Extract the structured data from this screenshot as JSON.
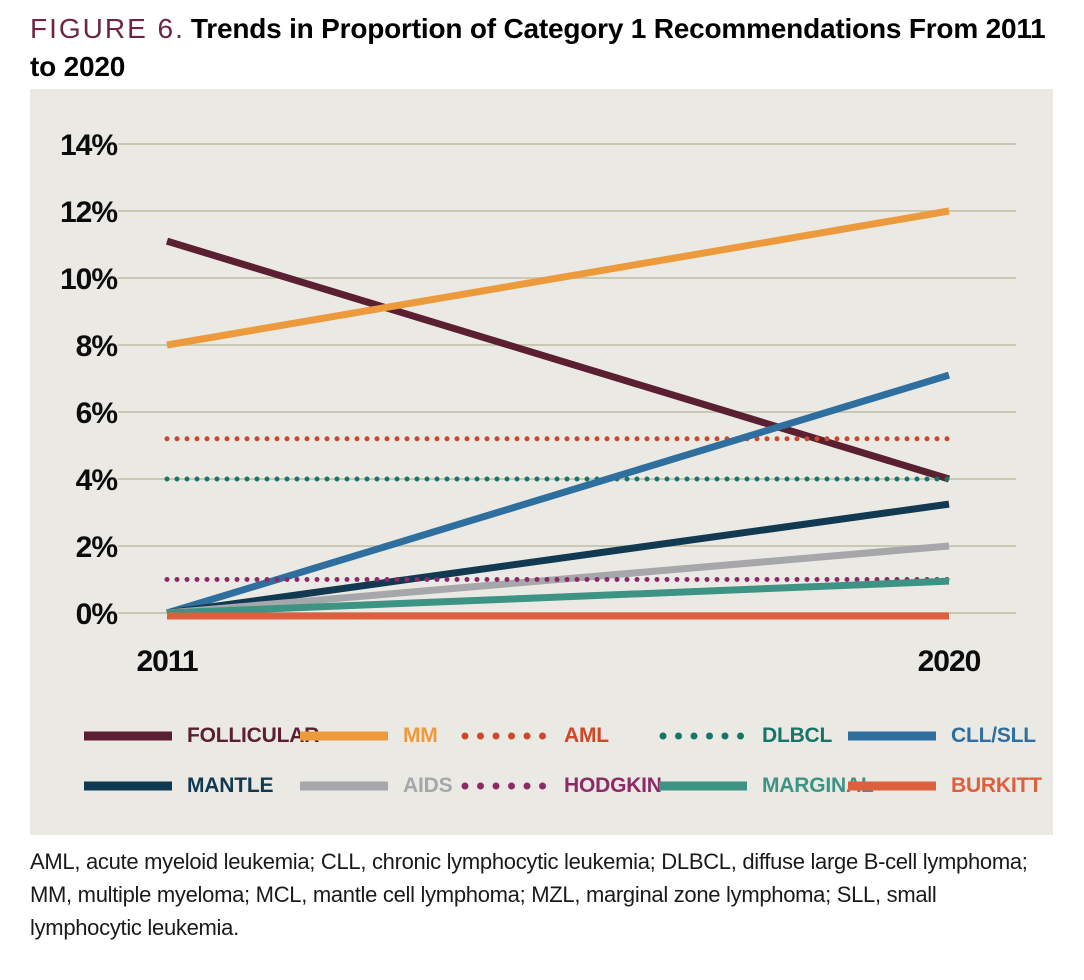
{
  "figure": {
    "label": "FIGURE 6.",
    "title_line_1": "Trends in Proportion of Category 1 Recommendations From 2011",
    "title_line_2": "to 2020",
    "label_color": "#6F2540"
  },
  "chart_data": {
    "type": "line",
    "x": [
      2011,
      2020
    ],
    "x_tick_labels": [
      "2011",
      "2020"
    ],
    "y_ticks": [
      {
        "value": 0,
        "label": "0%"
      },
      {
        "value": 2,
        "label": "2%"
      },
      {
        "value": 4,
        "label": "4%"
      },
      {
        "value": 6,
        "label": "6%"
      },
      {
        "value": 8,
        "label": "8%"
      },
      {
        "value": 10,
        "label": "10%"
      },
      {
        "value": 12,
        "label": "12%"
      },
      {
        "value": 14,
        "label": "14%"
      }
    ],
    "ylim": [
      0,
      14
    ],
    "grid": "horizontal-only",
    "gridline_color": "#C8C8B3",
    "plot_background": "#EBE9E3",
    "legend_position": "bottom",
    "series": [
      {
        "name": "FOLLICULAR",
        "style": "solid",
        "color": "#5A1F31",
        "values": [
          11.1,
          4.0
        ]
      },
      {
        "name": "MM",
        "style": "solid",
        "color": "#EC9A3C",
        "values": [
          8.0,
          12.0
        ]
      },
      {
        "name": "AML",
        "style": "dotted",
        "color": "#CC4829",
        "values": [
          5.2,
          5.2
        ]
      },
      {
        "name": "DLBCL",
        "style": "dotted",
        "color": "#15756A",
        "values": [
          4.0,
          4.0
        ]
      },
      {
        "name": "CLL/SLL",
        "style": "solid",
        "color": "#2E6F9F",
        "values": [
          0.0,
          7.1
        ]
      },
      {
        "name": "MANTLE",
        "style": "solid",
        "color": "#113A52",
        "values": [
          0.0,
          3.25
        ]
      },
      {
        "name": "AIDS",
        "style": "solid",
        "color": "#A5A7AA",
        "values": [
          0.0,
          2.0
        ]
      },
      {
        "name": "HODGKIN",
        "style": "dotted",
        "color": "#8C2A67",
        "values": [
          1.0,
          1.0
        ]
      },
      {
        "name": "MARGINAL",
        "style": "solid",
        "color": "#3D9484",
        "values": [
          0.0,
          0.95
        ]
      },
      {
        "name": "BURKITT",
        "style": "solid",
        "color": "#DD5F3D",
        "values": [
          0.0,
          0.0
        ]
      }
    ]
  },
  "footnote": {
    "text": "AML, acute myeloid leukemia; CLL, chronic lymphocytic leukemia; DLBCL, diffuse large B-cell lymphoma; MM, multiple myeloma; MCL, mantle cell lymphoma; MZL, marginal zone lymphoma; SLL, small lymphocytic leukemia."
  }
}
